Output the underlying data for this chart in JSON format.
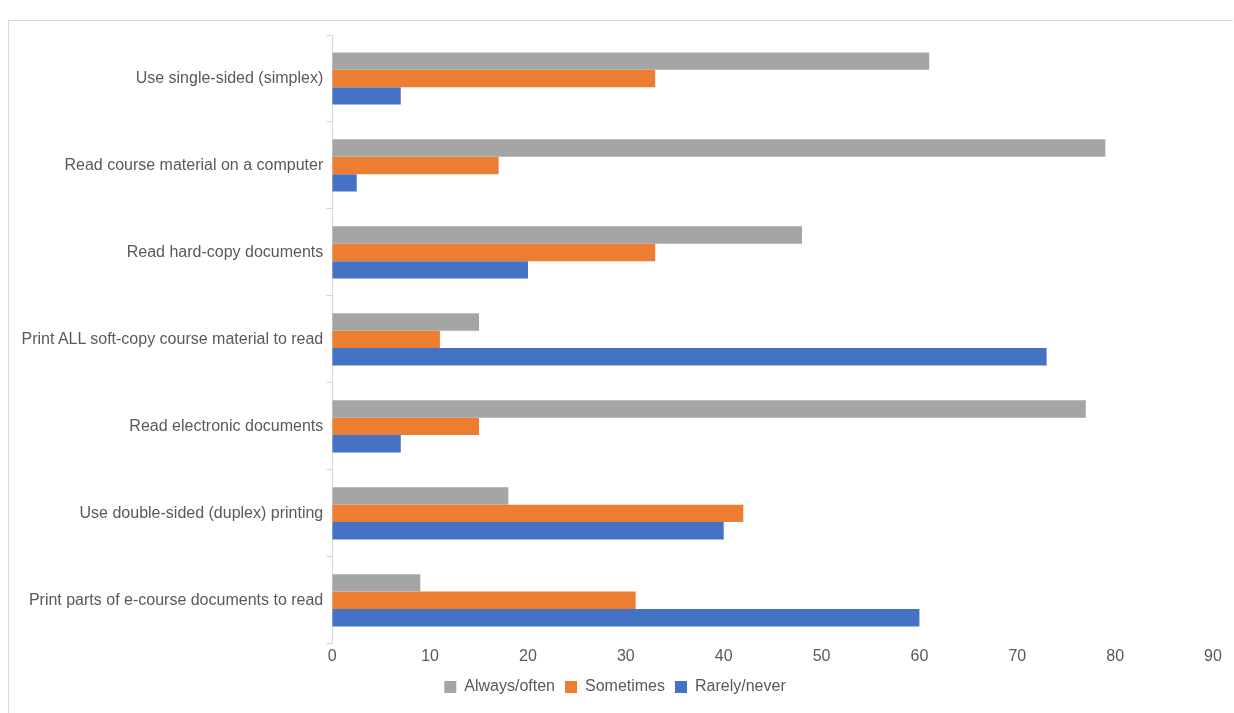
{
  "chart_data": {
    "type": "bar",
    "orientation": "horizontal",
    "categories": [
      "Use single-sided (simplex)",
      "Read course material on a computer",
      "Read hard-copy documents",
      "Print ALL soft-copy course material to read",
      "Read electronic documents",
      "Use double-sided (duplex) printing",
      "Print parts of e-course documents to read"
    ],
    "series": [
      {
        "name": "Always/often",
        "color": "#a5a5a5",
        "values": [
          61,
          79,
          48,
          15,
          77,
          18,
          9
        ]
      },
      {
        "name": "Sometimes",
        "color": "#ed7d31",
        "values": [
          33,
          17,
          33,
          11,
          15,
          42,
          31
        ]
      },
      {
        "name": "Rarely/never",
        "color": "#4472c4",
        "values": [
          7,
          2.5,
          20,
          73,
          7,
          40,
          60
        ]
      }
    ],
    "xlim": [
      0,
      90
    ],
    "xticks": [
      0,
      10,
      20,
      30,
      40,
      50,
      60,
      70,
      80,
      90
    ],
    "grid": false,
    "legend": "bottom"
  }
}
